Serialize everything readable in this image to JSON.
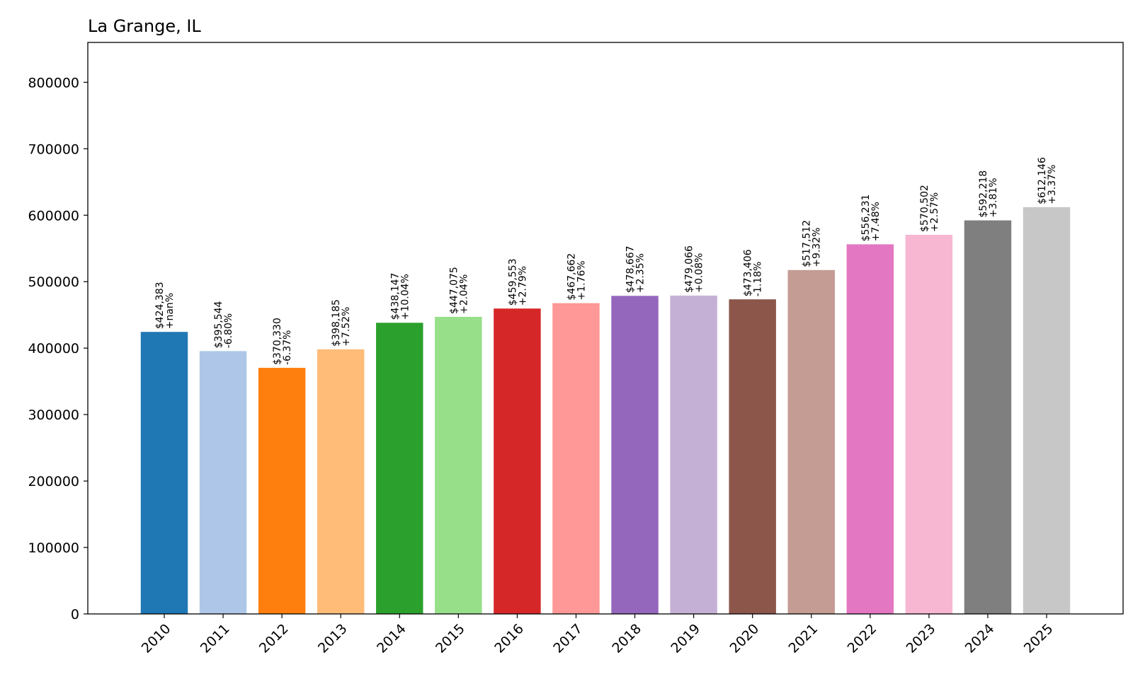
{
  "chart_data": {
    "type": "bar",
    "title": "La Grange, IL",
    "xlabel": "",
    "ylabel": "",
    "ylim": [
      0,
      860000
    ],
    "yticks": [
      0,
      100000,
      200000,
      300000,
      400000,
      500000,
      600000,
      700000,
      800000
    ],
    "ytick_labels": [
      "0",
      "100000",
      "200000",
      "300000",
      "400000",
      "500000",
      "600000",
      "700000",
      "800000"
    ],
    "grid": false,
    "categories": [
      "2010",
      "2011",
      "2012",
      "2013",
      "2014",
      "2015",
      "2016",
      "2017",
      "2018",
      "2019",
      "2020",
      "2021",
      "2022",
      "2023",
      "2024",
      "2025"
    ],
    "values": [
      424383,
      395544,
      370330,
      398185,
      438147,
      447075,
      459553,
      467662,
      478667,
      479066,
      473406,
      517512,
      556231,
      570502,
      592218,
      612146
    ],
    "value_labels": [
      "$424,383",
      "$395,544",
      "$370,330",
      "$398,185",
      "$438,147",
      "$447,075",
      "$459,553",
      "$467,662",
      "$478,667",
      "$479,066",
      "$473,406",
      "$517,512",
      "$556,231",
      "$570,502",
      "$592,218",
      "$612,146"
    ],
    "change_labels": [
      "+nan%",
      "-6.80%",
      "-6.37%",
      "+7.52%",
      "+10.04%",
      "+2.04%",
      "+2.79%",
      "+1.76%",
      "+2.35%",
      "+0.08%",
      "-1.18%",
      "+9.32%",
      "+7.48%",
      "+2.57%",
      "+3.81%",
      "+3.37%"
    ],
    "colors": [
      "#1f77b4",
      "#aec7e8",
      "#ff7f0e",
      "#ffbb78",
      "#2ca02c",
      "#98df8a",
      "#d62728",
      "#ff9896",
      "#9467bd",
      "#c5b0d5",
      "#8c564b",
      "#c49c94",
      "#e377c2",
      "#f7b6d2",
      "#7f7f7f",
      "#c7c7c7"
    ]
  }
}
